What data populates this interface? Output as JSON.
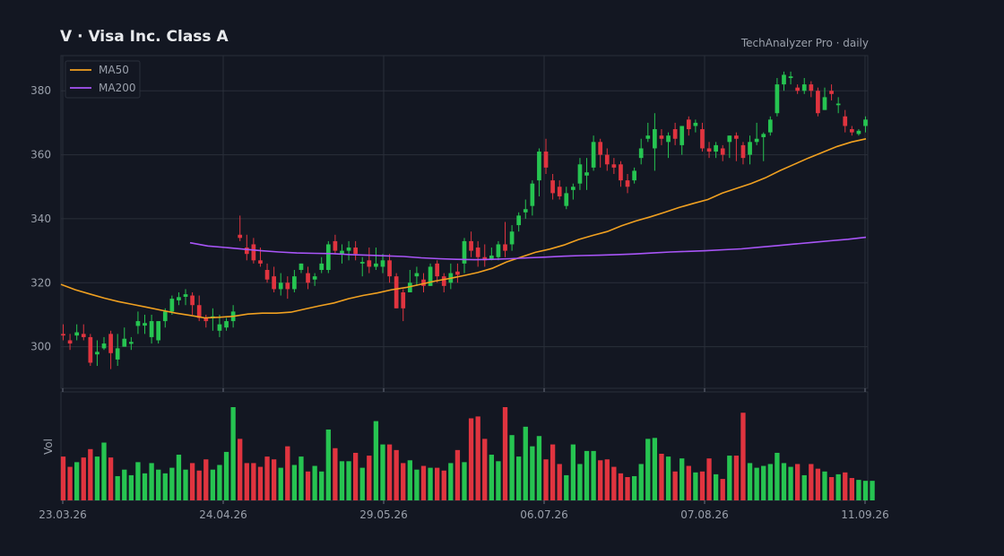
{
  "header": {
    "title": "V  ·  Visa Inc. Class A",
    "source": "TechAnalyzer Pro · daily"
  },
  "colors": {
    "background": "#131722",
    "up": "#26c451",
    "down": "#e0343f",
    "ma50": "#f0a020",
    "ma200": "#a855f7",
    "grid": "#2a2f3a",
    "text": "#9aa0ab"
  },
  "chart_data": {
    "type": "candlestick",
    "x_tick_labels": [
      "23.03.26",
      "24.04.26",
      "29.05.26",
      "06.07.26",
      "07.08.26",
      "11.09.26"
    ],
    "y_ticks": [
      300,
      320,
      340,
      360,
      380
    ],
    "ylim": [
      287,
      391
    ],
    "volume_label": "Vol",
    "grid": true,
    "legend": {
      "position": "top-left",
      "entries": [
        "MA50",
        "MA200"
      ]
    },
    "candles": [
      [
        304,
        303.5,
        307,
        302
      ],
      [
        302,
        301,
        304,
        299
      ],
      [
        303.5,
        304.5,
        307,
        302
      ],
      [
        304,
        303,
        307,
        302
      ],
      [
        303,
        295,
        304,
        294
      ],
      [
        297.6,
        298.4,
        302,
        294
      ],
      [
        299.5,
        301,
        303,
        299
      ],
      [
        304,
        298,
        305,
        293
      ],
      [
        296,
        299.5,
        304,
        294
      ],
      [
        300,
        302.5,
        306,
        300
      ],
      [
        300.9,
        301.5,
        303,
        299
      ],
      [
        306.5,
        308,
        311,
        304
      ],
      [
        306.6,
        307.4,
        310,
        304
      ],
      [
        303,
        308,
        310,
        301
      ],
      [
        302,
        308,
        308,
        301
      ],
      [
        308,
        311,
        312,
        306
      ],
      [
        311,
        315,
        316,
        310
      ],
      [
        314.5,
        315.5,
        317,
        313
      ],
      [
        315.6,
        316.4,
        318,
        313
      ],
      [
        316,
        313,
        317,
        310
      ],
      [
        313,
        309,
        316,
        308
      ],
      [
        309,
        308,
        310,
        306
      ],
      [
        308.9,
        309.5,
        312,
        305
      ],
      [
        305,
        307,
        310,
        303
      ],
      [
        306,
        308,
        309,
        305
      ],
      [
        308,
        311,
        313,
        306
      ],
      [
        335,
        334,
        341,
        333
      ],
      [
        331,
        329,
        335,
        327
      ],
      [
        332,
        327,
        334,
        326
      ],
      [
        327,
        326,
        331,
        325
      ],
      [
        324,
        321,
        326,
        320
      ],
      [
        322,
        318,
        325,
        317
      ],
      [
        318,
        320,
        323,
        316
      ],
      [
        320,
        318,
        322,
        315
      ],
      [
        318,
        322,
        324,
        317
      ],
      [
        324,
        326,
        326,
        323
      ],
      [
        323,
        320,
        325,
        318
      ],
      [
        321,
        322,
        323,
        319
      ],
      [
        324,
        326,
        328,
        323
      ],
      [
        324,
        332,
        333,
        323
      ],
      [
        333,
        330,
        335,
        329
      ],
      [
        329,
        330,
        332,
        326
      ],
      [
        330,
        331,
        333,
        327
      ],
      [
        331,
        329,
        333,
        327
      ],
      [
        326,
        326.5,
        328,
        322
      ],
      [
        327,
        325,
        331,
        323
      ],
      [
        325,
        326,
        331,
        324
      ],
      [
        325,
        327,
        329,
        323
      ],
      [
        327,
        322,
        329,
        320
      ],
      [
        322,
        312,
        323,
        312
      ],
      [
        317,
        312,
        318,
        308
      ],
      [
        317,
        320,
        324,
        317
      ],
      [
        322,
        323,
        325,
        319
      ],
      [
        321,
        319,
        323,
        317
      ],
      [
        319,
        325,
        326,
        319
      ],
      [
        326,
        322,
        327,
        320
      ],
      [
        322,
        319,
        323,
        317
      ],
      [
        320,
        323,
        326,
        318
      ],
      [
        323.5,
        322.5,
        326,
        320
      ],
      [
        326,
        333,
        334,
        323
      ],
      [
        333,
        330,
        336,
        328
      ],
      [
        331,
        328,
        333,
        325
      ],
      [
        328,
        327,
        332,
        325
      ],
      [
        327.5,
        328.5,
        331,
        327
      ],
      [
        328,
        332,
        333,
        327
      ],
      [
        332,
        330,
        339,
        328
      ],
      [
        332,
        336,
        338,
        330
      ],
      [
        338,
        341,
        342,
        336
      ],
      [
        342,
        343,
        346,
        340
      ],
      [
        344,
        351,
        352,
        341
      ],
      [
        352,
        361,
        362,
        347
      ],
      [
        361,
        356,
        365,
        354
      ],
      [
        352,
        348,
        354,
        346
      ],
      [
        350,
        347,
        352,
        346
      ],
      [
        344,
        348,
        350,
        343
      ],
      [
        349,
        350,
        351,
        346
      ],
      [
        351,
        357,
        359,
        349
      ],
      [
        353.5,
        354.5,
        359,
        349
      ],
      [
        356,
        364,
        366,
        355
      ],
      [
        364,
        360,
        365,
        356
      ],
      [
        360,
        357,
        362,
        355
      ],
      [
        357,
        356,
        359,
        354
      ],
      [
        357,
        352,
        358,
        350
      ],
      [
        352,
        350,
        354,
        348
      ],
      [
        352,
        355,
        356,
        351
      ],
      [
        359,
        362,
        365,
        357
      ],
      [
        365,
        366,
        370,
        364
      ],
      [
        362,
        368,
        373,
        355
      ],
      [
        366,
        365,
        368,
        363
      ],
      [
        364,
        366,
        367,
        359
      ],
      [
        368,
        365,
        370,
        363
      ],
      [
        363,
        369,
        369,
        360
      ],
      [
        371,
        368,
        372,
        366
      ],
      [
        369,
        370,
        371,
        367
      ],
      [
        368,
        362,
        370,
        361
      ],
      [
        362,
        361,
        364,
        359
      ],
      [
        361,
        363,
        364,
        359
      ],
      [
        362,
        360,
        363,
        358
      ],
      [
        364,
        366,
        366,
        359
      ],
      [
        366,
        365,
        367,
        358
      ],
      [
        363,
        359,
        364,
        357
      ],
      [
        360,
        364,
        366,
        357
      ],
      [
        364,
        365,
        370,
        363
      ],
      [
        365.5,
        366.5,
        367,
        358
      ],
      [
        367,
        371,
        372,
        366
      ],
      [
        373,
        382,
        384,
        372
      ],
      [
        382,
        385,
        386,
        380
      ],
      [
        384,
        384.5,
        386,
        382
      ],
      [
        381,
        380,
        382,
        379
      ],
      [
        380,
        382,
        384,
        379
      ],
      [
        382,
        380,
        383,
        378
      ],
      [
        380,
        373,
        381,
        372
      ],
      [
        374,
        378,
        381,
        374
      ],
      [
        380,
        379,
        382,
        377
      ],
      [
        375.5,
        376,
        378,
        373
      ],
      [
        372,
        369,
        374,
        367
      ],
      [
        368,
        367,
        369,
        366
      ],
      [
        366.5,
        367.5,
        368,
        366
      ],
      [
        369,
        371,
        372,
        367
      ]
    ],
    "volumes": [
      0.47,
      0.36,
      0.41,
      0.46,
      0.55,
      0.47,
      0.62,
      0.46,
      0.26,
      0.33,
      0.27,
      0.41,
      0.29,
      0.4,
      0.33,
      0.29,
      0.35,
      0.49,
      0.33,
      0.4,
      0.32,
      0.44,
      0.33,
      0.38,
      0.52,
      1.0,
      0.66,
      0.4,
      0.4,
      0.36,
      0.47,
      0.44,
      0.35,
      0.58,
      0.38,
      0.47,
      0.31,
      0.37,
      0.31,
      0.76,
      0.56,
      0.42,
      0.42,
      0.51,
      0.35,
      0.48,
      0.85,
      0.6,
      0.6,
      0.54,
      0.4,
      0.43,
      0.33,
      0.37,
      0.35,
      0.35,
      0.32,
      0.4,
      0.54,
      0.41,
      0.88,
      0.9,
      0.66,
      0.49,
      0.42,
      1.0,
      0.7,
      0.47,
      0.79,
      0.58,
      0.69,
      0.44,
      0.6,
      0.39,
      0.27,
      0.6,
      0.39,
      0.53,
      0.53,
      0.43,
      0.44,
      0.36,
      0.29,
      0.25,
      0.26,
      0.39,
      0.66,
      0.67,
      0.5,
      0.47,
      0.31,
      0.45,
      0.37,
      0.3,
      0.31,
      0.45,
      0.28,
      0.23,
      0.48,
      0.48,
      0.94,
      0.4,
      0.35,
      0.37,
      0.39,
      0.51,
      0.4,
      0.36,
      0.39,
      0.27,
      0.39,
      0.34,
      0.31,
      0.25,
      0.28,
      0.3,
      0.24,
      0.22,
      0.21,
      0.21
    ],
    "series": [
      {
        "name": "MA50",
        "values": [
          319.5,
          317.8,
          316.5,
          315.2,
          314.1,
          313.2,
          312.3,
          311.4,
          310.5,
          309.8,
          309.0,
          309.2,
          309.5,
          310.2,
          310.5,
          310.5,
          310.8,
          311.8,
          312.8,
          313.7,
          315.0,
          316.0,
          316.8,
          317.8,
          318.5,
          319.5,
          320.5,
          321.3,
          322.2,
          323.2,
          324.5,
          326.5,
          328.0,
          329.5,
          330.5,
          331.8,
          333.5,
          334.8,
          336.0,
          337.8,
          339.3,
          340.6,
          342.0,
          343.5,
          344.8,
          346.0,
          348.0,
          349.5,
          351.0,
          352.8,
          355.0,
          357.0,
          359.0,
          360.8,
          362.6,
          364.0,
          365.0
        ]
      },
      {
        "name": "MA200",
        "values": [
          332.5,
          331.5,
          331.0,
          330.5,
          330.0,
          329.6,
          329.3,
          329.2,
          329.1,
          328.8,
          328.6,
          328.4,
          328.2,
          327.8,
          327.5,
          327.3,
          327.2,
          327.3,
          327.5,
          327.8,
          328.0,
          328.3,
          328.5,
          328.6,
          328.8,
          329.0,
          329.3,
          329.6,
          329.8,
          330.0,
          330.3,
          330.6,
          331.1,
          331.6,
          332.1,
          332.6,
          333.1,
          333.6,
          334.2
        ]
      }
    ]
  }
}
